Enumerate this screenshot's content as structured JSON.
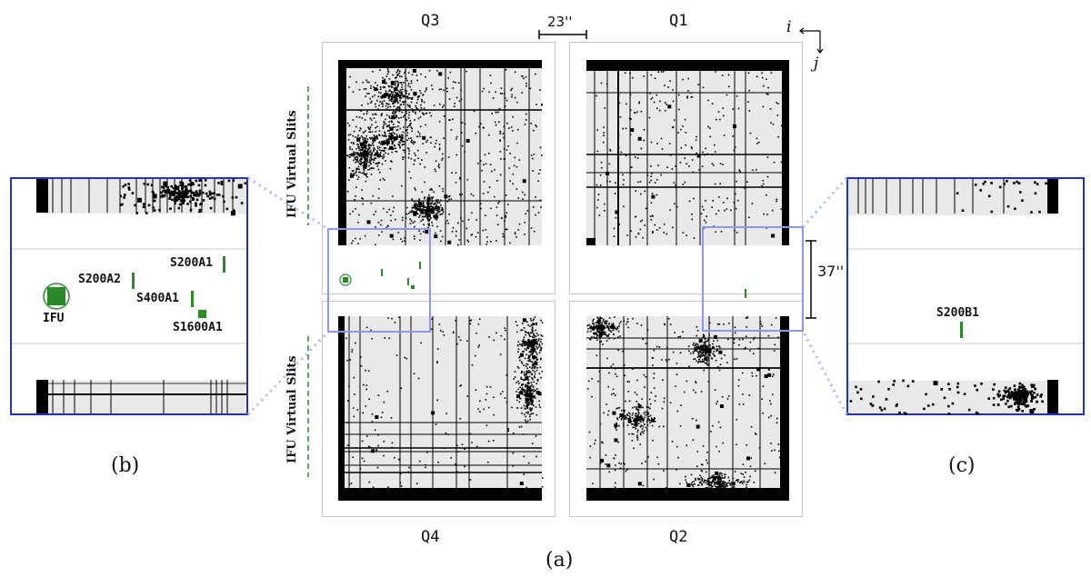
{
  "quadrants": {
    "q3": "Q3",
    "q1": "Q1",
    "q4": "Q4",
    "q2": "Q2"
  },
  "scale": {
    "horizontal": "23''",
    "vertical": "37''"
  },
  "axes": {
    "i": "i",
    "j": "j"
  },
  "ifu_virtual_slits": "IFU Virtual Slits",
  "panels": {
    "a": "(a)",
    "b": "(b)",
    "c": "(c)"
  },
  "zoom_b": {
    "ifu": "IFU",
    "s200a2": "S200A2",
    "s200a1": "S200A1",
    "s400a1": "S400A1",
    "s1600a1": "S1600A1"
  },
  "zoom_c": {
    "s200b1": "S200B1"
  },
  "colors": {
    "slit_green": "#2a8a2a",
    "zoom_border": "#1f2fd0",
    "highlight": "#8c97ee",
    "shutter_bg": "#e9e9e9",
    "frame": "#c8c8c8"
  }
}
